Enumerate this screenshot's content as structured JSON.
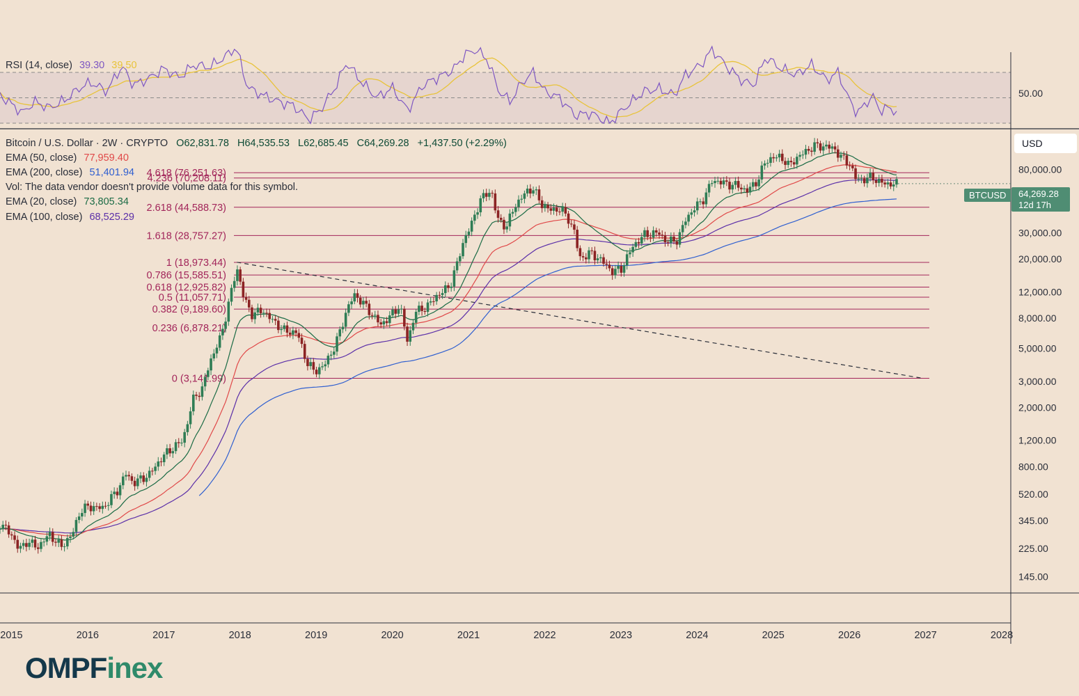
{
  "rsi": {
    "label": "RSI (14, close)",
    "value": "39.30",
    "ma_value": "39.50",
    "level_label": "50.00"
  },
  "header": {
    "symbol": "Bitcoin / U.S. Dollar · 2W · CRYPTO",
    "open": "O62,831.78",
    "high": "H64,535.53",
    "low": "L62,685.45",
    "close": "C64,269.28",
    "change": "+1,437.50 (+2.29%)"
  },
  "indicators": [
    {
      "label": "EMA (50, close)",
      "value": "77,959.40",
      "color": "#e04848"
    },
    {
      "label": "EMA (200, close)",
      "value": "51,401.94",
      "color": "#2f5fd0"
    },
    {
      "label": "Vol: The data vendor doesn't provide volume data for this symbol.",
      "value": "",
      "color": "#2a2e39"
    },
    {
      "label": "EMA (20, close)",
      "value": "73,805.34",
      "color": "#1b6b45"
    },
    {
      "label": "EMA (100, close)",
      "value": "68,525.29",
      "color": "#5b2fa8"
    }
  ],
  "currency_button": "USD",
  "price_tag": {
    "symbol": "BTCUSD",
    "price": "64,269.28",
    "countdown": "12d 17h"
  },
  "logo": {
    "part1": "OMPF",
    "part2": "inex"
  },
  "colors": {
    "background": "#f1e2d2",
    "fib": "#a2255a",
    "rsi_line": "#7e57c2",
    "rsi_ma": "#e8c33a",
    "ema20": "#1b6b45",
    "ema50": "#e04848",
    "ema100": "#5b2fa8",
    "ema200": "#2f5fd0",
    "candle_up": "#2f7d55",
    "candle_down": "#8c2424"
  },
  "chart_data": {
    "type": "candlestick",
    "scale": "log",
    "timeframe": "2W",
    "price_axis_labels": [
      80000,
      30000,
      20000,
      12000,
      8000,
      5000,
      3000,
      2000,
      1200,
      800,
      520,
      345,
      225,
      145
    ],
    "x_axis_labels": [
      "2015",
      "2016",
      "2017",
      "2018",
      "2019",
      "2020",
      "2021",
      "2022",
      "2023",
      "2024",
      "2025",
      "2026",
      "2027",
      "2028"
    ],
    "fib_levels": [
      {
        "label": "4.618 (76,251.63)",
        "value": 76251.63
      },
      {
        "label": "4.236 (70,208.11)",
        "value": 70208.11
      },
      {
        "label": "2.618 (44,588.73)",
        "value": 44588.73
      },
      {
        "label": "1.618 (28,757.27)",
        "value": 28757.27
      },
      {
        "label": "1 (18,973.44)",
        "value": 18973.44
      },
      {
        "label": "0.786 (15,585.51)",
        "value": 15585.51
      },
      {
        "label": "0.618 (12,925.82)",
        "value": 12925.82
      },
      {
        "label": "0.5 (11,057.71)",
        "value": 11057.71
      },
      {
        "label": "0.382 (9,189.60)",
        "value": 9189.6
      },
      {
        "label": "0.236 (6,878.21)",
        "value": 6878.21
      },
      {
        "label": "0 (3,141.99)",
        "value": 3141.99
      }
    ],
    "trendline": [
      {
        "x": 2017.96,
        "y": 19000
      },
      {
        "x": 2026.95,
        "y": 3150
      }
    ],
    "price_path": [
      [
        2014.85,
        330
      ],
      [
        2015.0,
        280
      ],
      [
        2015.1,
        220
      ],
      [
        2015.2,
        250
      ],
      [
        2015.35,
        230
      ],
      [
        2015.5,
        280
      ],
      [
        2015.65,
        230
      ],
      [
        2015.8,
        280
      ],
      [
        2015.9,
        400
      ],
      [
        2016.0,
        430
      ],
      [
        2016.2,
        420
      ],
      [
        2016.4,
        560
      ],
      [
        2016.5,
        720
      ],
      [
        2016.6,
        620
      ],
      [
        2016.8,
        700
      ],
      [
        2017.0,
        950
      ],
      [
        2017.1,
        1050
      ],
      [
        2017.25,
        1200
      ],
      [
        2017.4,
        2400
      ],
      [
        2017.5,
        2600
      ],
      [
        2017.6,
        4000
      ],
      [
        2017.75,
        6000
      ],
      [
        2017.85,
        10000
      ],
      [
        2017.96,
        17500
      ],
      [
        2018.05,
        11000
      ],
      [
        2018.15,
        8500
      ],
      [
        2018.3,
        9000
      ],
      [
        2018.45,
        7500
      ],
      [
        2018.6,
        6500
      ],
      [
        2018.75,
        6400
      ],
      [
        2018.88,
        4000
      ],
      [
        2018.98,
        3500
      ],
      [
        2019.1,
        3800
      ],
      [
        2019.25,
        5200
      ],
      [
        2019.4,
        9000
      ],
      [
        2019.5,
        11500
      ],
      [
        2019.6,
        10300
      ],
      [
        2019.75,
        8300
      ],
      [
        2019.85,
        7200
      ],
      [
        2020.0,
        8500
      ],
      [
        2020.1,
        9800
      ],
      [
        2020.2,
        5500
      ],
      [
        2020.3,
        8800
      ],
      [
        2020.45,
        9500
      ],
      [
        2020.6,
        11500
      ],
      [
        2020.75,
        13000
      ],
      [
        2020.85,
        18500
      ],
      [
        2020.95,
        28000
      ],
      [
        2021.05,
        35000
      ],
      [
        2021.15,
        50000
      ],
      [
        2021.3,
        58000
      ],
      [
        2021.38,
        37000
      ],
      [
        2021.5,
        33000
      ],
      [
        2021.6,
        45000
      ],
      [
        2021.75,
        56000
      ],
      [
        2021.85,
        60000
      ],
      [
        2021.95,
        47000
      ],
      [
        2022.1,
        42000
      ],
      [
        2022.2,
        44000
      ],
      [
        2022.3,
        38000
      ],
      [
        2022.4,
        30000
      ],
      [
        2022.45,
        20000
      ],
      [
        2022.6,
        22000
      ],
      [
        2022.75,
        19500
      ],
      [
        2022.88,
        16500
      ],
      [
        2023.0,
        17000
      ],
      [
        2023.15,
        24000
      ],
      [
        2023.3,
        29000
      ],
      [
        2023.5,
        30000
      ],
      [
        2023.6,
        26000
      ],
      [
        2023.75,
        27000
      ],
      [
        2023.85,
        37000
      ],
      [
        2023.95,
        43000
      ],
      [
        2024.1,
        52000
      ],
      [
        2024.2,
        68000
      ],
      [
        2024.4,
        64000
      ],
      [
        2024.55,
        62000
      ],
      [
        2024.65,
        57000
      ],
      [
        2024.8,
        68000
      ],
      [
        2024.9,
        92000
      ],
      [
        2025.0,
        96000
      ],
      [
        2025.1,
        98000
      ],
      [
        2025.2,
        85000
      ],
      [
        2025.3,
        95000
      ],
      [
        2025.45,
        108000
      ],
      [
        2025.55,
        116000
      ],
      [
        2025.7,
        114000
      ],
      [
        2025.8,
        111000
      ],
      [
        2025.88,
        98000
      ],
      [
        2026.0,
        88000
      ],
      [
        2026.08,
        70000
      ],
      [
        2026.18,
        68000
      ],
      [
        2026.3,
        72000
      ],
      [
        2026.38,
        66000
      ],
      [
        2026.5,
        64000
      ],
      [
        2026.62,
        64269.28
      ]
    ],
    "rsi_path": [
      [
        2014.85,
        52
      ],
      [
        2015.0,
        45
      ],
      [
        2015.15,
        38
      ],
      [
        2015.3,
        47
      ],
      [
        2015.5,
        42
      ],
      [
        2015.7,
        48
      ],
      [
        2015.9,
        58
      ],
      [
        2016.05,
        62
      ],
      [
        2016.25,
        55
      ],
      [
        2016.45,
        75
      ],
      [
        2016.6,
        60
      ],
      [
        2016.8,
        65
      ],
      [
        2017.0,
        73
      ],
      [
        2017.2,
        66
      ],
      [
        2017.4,
        76
      ],
      [
        2017.6,
        74
      ],
      [
        2017.8,
        82
      ],
      [
        2017.95,
        90
      ],
      [
        2018.1,
        58
      ],
      [
        2018.3,
        52
      ],
      [
        2018.5,
        47
      ],
      [
        2018.7,
        44
      ],
      [
        2018.9,
        33
      ],
      [
        2019.05,
        40
      ],
      [
        2019.25,
        58
      ],
      [
        2019.4,
        78
      ],
      [
        2019.6,
        62
      ],
      [
        2019.8,
        50
      ],
      [
        2020.0,
        58
      ],
      [
        2020.2,
        40
      ],
      [
        2020.4,
        60
      ],
      [
        2020.6,
        66
      ],
      [
        2020.8,
        72
      ],
      [
        2020.95,
        84
      ],
      [
        2021.1,
        88
      ],
      [
        2021.25,
        80
      ],
      [
        2021.4,
        55
      ],
      [
        2021.55,
        47
      ],
      [
        2021.7,
        62
      ],
      [
        2021.85,
        70
      ],
      [
        2022.0,
        55
      ],
      [
        2022.2,
        50
      ],
      [
        2022.4,
        36
      ],
      [
        2022.6,
        38
      ],
      [
        2022.85,
        30
      ],
      [
        2023.05,
        42
      ],
      [
        2023.3,
        55
      ],
      [
        2023.5,
        57
      ],
      [
        2023.7,
        52
      ],
      [
        2023.85,
        68
      ],
      [
        2024.05,
        76
      ],
      [
        2024.2,
        88
      ],
      [
        2024.4,
        74
      ],
      [
        2024.6,
        63
      ],
      [
        2024.75,
        60
      ],
      [
        2024.9,
        82
      ],
      [
        2025.1,
        73
      ],
      [
        2025.3,
        68
      ],
      [
        2025.5,
        76
      ],
      [
        2025.7,
        64
      ],
      [
        2025.85,
        70
      ],
      [
        2026.0,
        48
      ],
      [
        2026.1,
        38
      ],
      [
        2026.2,
        44
      ],
      [
        2026.3,
        52
      ],
      [
        2026.4,
        40
      ],
      [
        2026.5,
        42
      ],
      [
        2026.62,
        39.3
      ]
    ]
  }
}
